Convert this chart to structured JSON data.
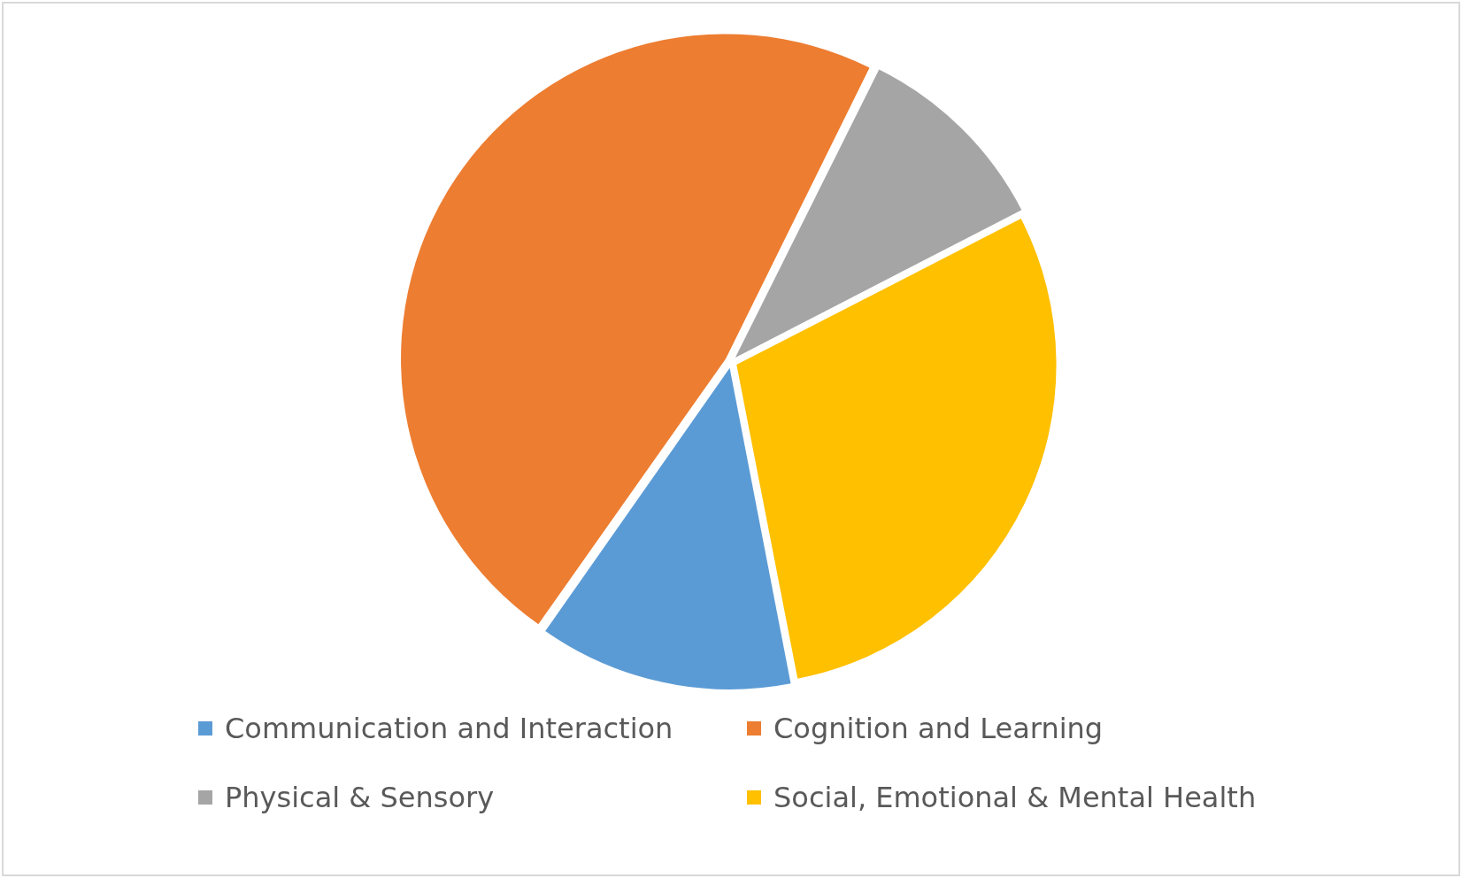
{
  "chart_data": {
    "type": "pie",
    "categories": [
      "Communication and Interaction",
      "Cognition and Learning",
      "Physical & Sensory",
      "Social, Emotional & Mental Health"
    ],
    "values": [
      12.8,
      47.6,
      10.1,
      29.5
    ],
    "colors": [
      "#5b9bd5",
      "#ed7d31",
      "#a5a5a5",
      "#ffc000"
    ],
    "legend": "bottom"
  }
}
